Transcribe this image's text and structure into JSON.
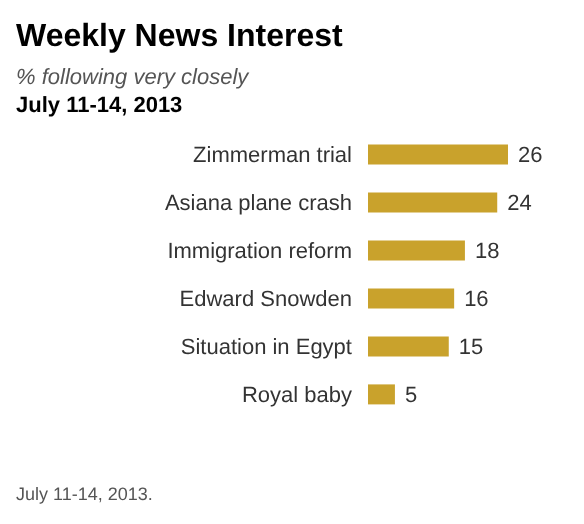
{
  "chart_data": {
    "type": "bar",
    "orientation": "horizontal",
    "title": "Weekly News Interest",
    "subtitle": "% following very closely",
    "annotations": [
      "July 11-14, 2013",
      "July 11-14, 2013."
    ],
    "categories": [
      "Zimmerman trial",
      "Asiana plane crash",
      "Immigration reform",
      "Edward Snowden",
      "Situation in Egypt",
      "Royal baby"
    ],
    "values": [
      26,
      24,
      18,
      16,
      15,
      5
    ],
    "color": "#c9a22c",
    "data_labels": true
  }
}
